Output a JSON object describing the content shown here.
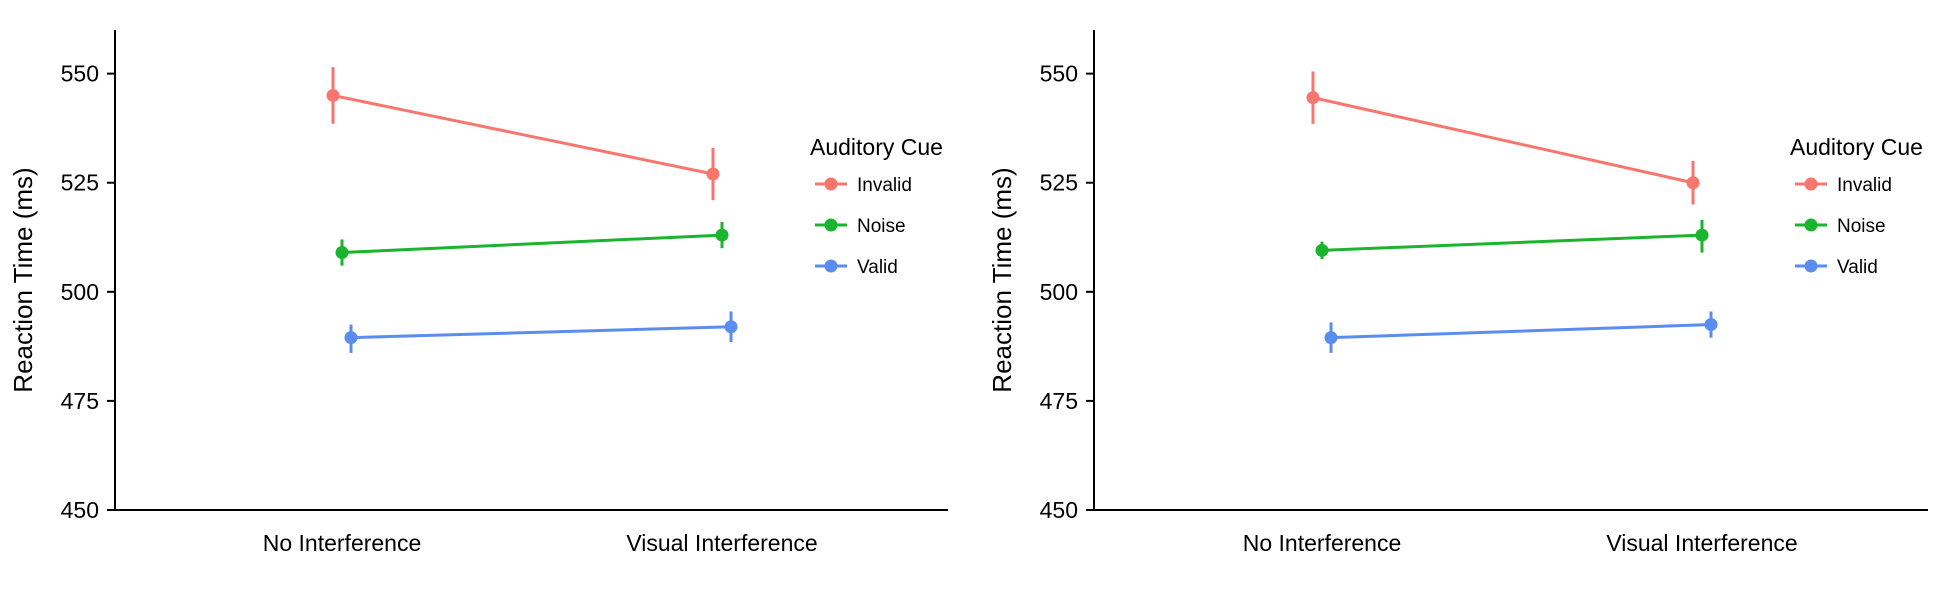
{
  "chart_data": [
    {
      "type": "line",
      "categories": [
        "No Interference",
        "Visual Interference"
      ],
      "ylabel": "Reaction Time (ms)",
      "xlabel": "",
      "ylim": [
        450,
        560
      ],
      "yticks": [
        450,
        475,
        500,
        525,
        550
      ],
      "grid": false,
      "error_bars": true,
      "legend": {
        "title": "Auditory Cue",
        "placement": "right"
      },
      "series": [
        {
          "name": "Invalid",
          "color": "#F8766D",
          "values": [
            545,
            527
          ],
          "err_low": [
            538.5,
            521
          ],
          "err_high": [
            551.5,
            533
          ]
        },
        {
          "name": "Noise",
          "color": "#1BB42E",
          "values": [
            509,
            513
          ],
          "err_low": [
            506,
            510
          ],
          "err_high": [
            512,
            516
          ]
        },
        {
          "name": "Valid",
          "color": "#5B8DEF",
          "values": [
            489.5,
            492
          ],
          "err_low": [
            486,
            488.5
          ],
          "err_high": [
            492.5,
            495.5
          ]
        }
      ]
    },
    {
      "type": "line",
      "categories": [
        "No Interference",
        "Visual Interference"
      ],
      "ylabel": "Reaction Time (ms)",
      "xlabel": "",
      "ylim": [
        450,
        560
      ],
      "yticks": [
        450,
        475,
        500,
        525,
        550
      ],
      "grid": false,
      "error_bars": true,
      "legend": {
        "title": "Auditory Cue",
        "placement": "right"
      },
      "series": [
        {
          "name": "Invalid",
          "color": "#F8766D",
          "values": [
            544.5,
            525
          ],
          "err_low": [
            538.5,
            520
          ],
          "err_high": [
            550.5,
            530
          ]
        },
        {
          "name": "Noise",
          "color": "#1BB42E",
          "values": [
            509.5,
            513
          ],
          "err_low": [
            507.5,
            509
          ],
          "err_high": [
            511.5,
            516.5
          ]
        },
        {
          "name": "Valid",
          "color": "#5B8DEF",
          "values": [
            489.5,
            492.5
          ],
          "err_low": [
            486,
            489.5
          ],
          "err_high": [
            493,
            495.5
          ]
        }
      ]
    }
  ]
}
